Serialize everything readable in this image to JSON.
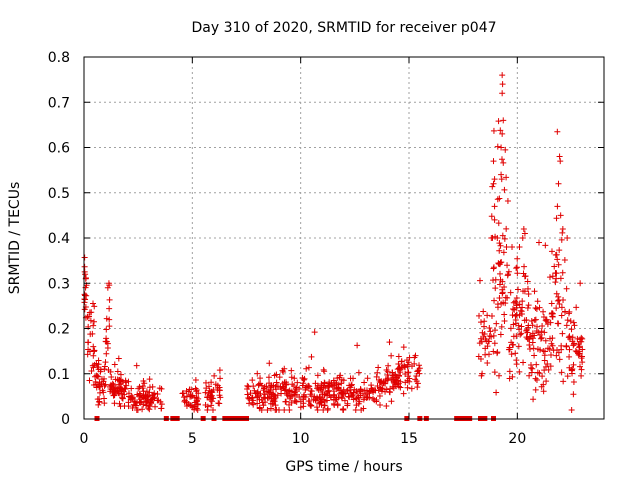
{
  "chart_data": {
    "type": "scatter",
    "title": "Day 310 of 2020, SRMTID for receiver p047",
    "xlabel": "GPS time / hours",
    "ylabel": "SRMTID / TECUs",
    "xlim": [
      0,
      24
    ],
    "ylim": [
      0,
      0.8
    ],
    "xticks": [
      0,
      5,
      10,
      15,
      20
    ],
    "yticks": [
      0,
      0.1,
      0.2,
      0.3,
      0.4,
      0.5,
      0.6,
      0.7,
      0.8
    ],
    "xtick_labels": [
      "0",
      "5",
      "10",
      "15",
      "20"
    ],
    "ytick_labels": [
      "0",
      "0.1",
      "0.2",
      "0.3",
      "0.4",
      "0.5",
      "0.6",
      "0.7",
      "0.8"
    ],
    "grid": true,
    "marker": "plus",
    "color": "#e00000",
    "series": [
      {
        "name": "SRMTID",
        "segments": [
          {
            "x_start": 0.0,
            "x_end": 0.1,
            "level": 0.28,
            "spread": 0.05,
            "n": 14
          },
          {
            "x_start": 0.1,
            "x_end": 0.5,
            "level": 0.16,
            "spread": 0.07,
            "n": 30
          },
          {
            "x_start": 0.5,
            "x_end": 1.0,
            "level": 0.08,
            "spread": 0.04,
            "n": 40
          },
          {
            "x_start": 1.0,
            "x_end": 1.2,
            "level": 0.2,
            "spread": 0.08,
            "n": 14
          },
          {
            "x_start": 1.2,
            "x_end": 2.0,
            "level": 0.07,
            "spread": 0.03,
            "n": 60
          },
          {
            "x_start": 2.0,
            "x_end": 3.6,
            "level": 0.045,
            "spread": 0.025,
            "n": 90
          },
          {
            "x_start": 4.5,
            "x_end": 5.3,
            "level": 0.045,
            "spread": 0.02,
            "n": 40
          },
          {
            "x_start": 5.6,
            "x_end": 6.3,
            "level": 0.05,
            "spread": 0.025,
            "n": 40
          },
          {
            "x_start": 7.5,
            "x_end": 9.0,
            "level": 0.05,
            "spread": 0.03,
            "n": 90
          },
          {
            "x_start": 9.0,
            "x_end": 11.5,
            "level": 0.055,
            "spread": 0.035,
            "n": 150
          },
          {
            "x_start": 11.5,
            "x_end": 13.5,
            "level": 0.055,
            "spread": 0.03,
            "n": 110
          },
          {
            "x_start": 13.5,
            "x_end": 14.5,
            "level": 0.08,
            "spread": 0.04,
            "n": 60
          },
          {
            "x_start": 14.5,
            "x_end": 15.5,
            "level": 0.1,
            "spread": 0.035,
            "n": 50
          },
          {
            "x_start": 18.2,
            "x_end": 18.8,
            "level": 0.16,
            "spread": 0.06,
            "n": 30
          },
          {
            "x_start": 18.8,
            "x_end": 19.6,
            "level": 0.3,
            "spread": 0.2,
            "n": 70
          },
          {
            "x_start": 19.6,
            "x_end": 20.5,
            "level": 0.22,
            "spread": 0.1,
            "n": 70
          },
          {
            "x_start": 20.5,
            "x_end": 21.5,
            "level": 0.16,
            "spread": 0.09,
            "n": 70
          },
          {
            "x_start": 21.5,
            "x_end": 22.3,
            "level": 0.25,
            "spread": 0.15,
            "n": 60
          },
          {
            "x_start": 22.3,
            "x_end": 23.0,
            "level": 0.15,
            "spread": 0.06,
            "n": 50
          }
        ],
        "peaks": [
          {
            "x": 19.3,
            "y": 0.76
          },
          {
            "x": 19.32,
            "y": 0.74
          },
          {
            "x": 19.3,
            "y": 0.72
          },
          {
            "x": 19.35,
            "y": 0.66
          },
          {
            "x": 19.3,
            "y": 0.63
          },
          {
            "x": 19.25,
            "y": 0.6
          },
          {
            "x": 18.9,
            "y": 0.57
          },
          {
            "x": 19.25,
            "y": 0.54
          },
          {
            "x": 19.28,
            "y": 0.53
          },
          {
            "x": 18.95,
            "y": 0.53
          },
          {
            "x": 18.9,
            "y": 0.52
          },
          {
            "x": 18.95,
            "y": 0.47
          },
          {
            "x": 18.95,
            "y": 0.44
          },
          {
            "x": 21.95,
            "y": 0.58
          },
          {
            "x": 21.98,
            "y": 0.57
          },
          {
            "x": 21.9,
            "y": 0.52
          },
          {
            "x": 22.0,
            "y": 0.45
          },
          {
            "x": 21.85,
            "y": 0.47
          },
          {
            "x": 22.1,
            "y": 0.42
          },
          {
            "x": 20.3,
            "y": 0.42
          },
          {
            "x": 20.35,
            "y": 0.41
          },
          {
            "x": 20.25,
            "y": 0.4
          },
          {
            "x": 22.3,
            "y": 0.4
          },
          {
            "x": 21.0,
            "y": 0.39
          },
          {
            "x": 20.1,
            "y": 0.38
          },
          {
            "x": 19.5,
            "y": 0.38
          },
          {
            "x": 18.8,
            "y": 0.4
          },
          {
            "x": 0.05,
            "y": 0.32
          },
          {
            "x": 0.08,
            "y": 0.31
          },
          {
            "x": 1.1,
            "y": 0.29
          },
          {
            "x": 1.15,
            "y": 0.3
          },
          {
            "x": 14.1,
            "y": 0.17
          },
          {
            "x": 15.3,
            "y": 0.14
          },
          {
            "x": 22.9,
            "y": 0.3
          }
        ],
        "zero_values_x": [
          0.6,
          3.8,
          4.1,
          4.3,
          5.5,
          6.0,
          6.5,
          6.7,
          6.9,
          7.1,
          7.3,
          7.5,
          14.9,
          15.5,
          15.8,
          17.2,
          17.4,
          17.6,
          17.8,
          18.3,
          18.5,
          18.9
        ]
      }
    ]
  }
}
